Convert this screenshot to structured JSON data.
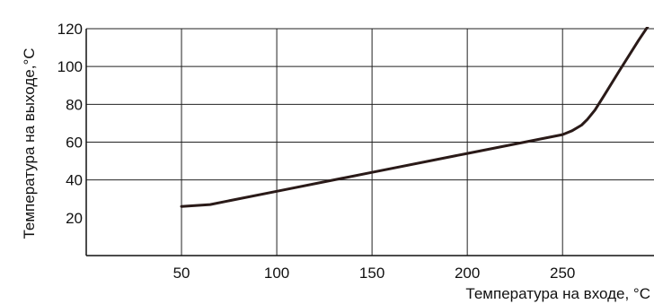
{
  "chart_data": {
    "type": "line",
    "title": "",
    "xlabel": "Температура на входе, °C",
    "ylabel": "Температура на выходе,°C",
    "xlim": [
      0,
      298
    ],
    "ylim": [
      0,
      120
    ],
    "x_ticks": [
      50,
      100,
      150,
      200,
      250
    ],
    "y_ticks": [
      20,
      40,
      60,
      80,
      100,
      120
    ],
    "x_tick_labels": [
      "50",
      "100",
      "150",
      "200",
      "250"
    ],
    "y_tick_labels": [
      "20",
      "40",
      "60",
      "80",
      "100",
      "120"
    ],
    "x_gridlines": [
      50,
      100,
      150,
      200,
      250
    ],
    "y_gridlines": [
      40,
      60,
      80,
      100,
      120
    ],
    "grid": true,
    "legend": "none",
    "line_color": "#2a1a18",
    "grid_color": "#222222",
    "series": [
      {
        "x": [
          50,
          65,
          100,
          150,
          200,
          250,
          255,
          260,
          263,
          267,
          272,
          280,
          290,
          298
        ],
        "y": [
          26,
          27,
          34,
          44,
          54,
          64,
          66,
          69,
          72,
          77,
          85,
          98,
          114,
          126
        ]
      }
    ]
  }
}
